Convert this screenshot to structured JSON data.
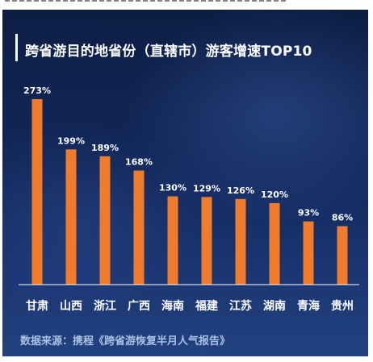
{
  "title": "跨省游目的地省份（直辖市）游客增速TOP10",
  "source": "数据来源：携程《跨省游恢复半月人气报告》",
  "colors": {
    "bar": "#f07b2a",
    "axis": "#ffffff",
    "label": "#ffffff",
    "source": "#a9c0e6"
  },
  "chart_data": {
    "type": "bar",
    "title": "跨省游目的地省份（直辖市）游客增速TOP10",
    "xlabel": "",
    "ylabel": "",
    "categories": [
      "甘肃",
      "山西",
      "浙江",
      "广西",
      "海南",
      "福建",
      "江苏",
      "湖南",
      "青海",
      "贵州"
    ],
    "values": [
      273,
      199,
      189,
      168,
      130,
      129,
      126,
      120,
      93,
      86
    ],
    "value_labels": [
      "273%",
      "199%",
      "189%",
      "168%",
      "130%",
      "129%",
      "126%",
      "120%",
      "93%",
      "86%"
    ],
    "unit": "%",
    "ylim": [
      0,
      273
    ],
    "grid": false,
    "legend": "none"
  }
}
